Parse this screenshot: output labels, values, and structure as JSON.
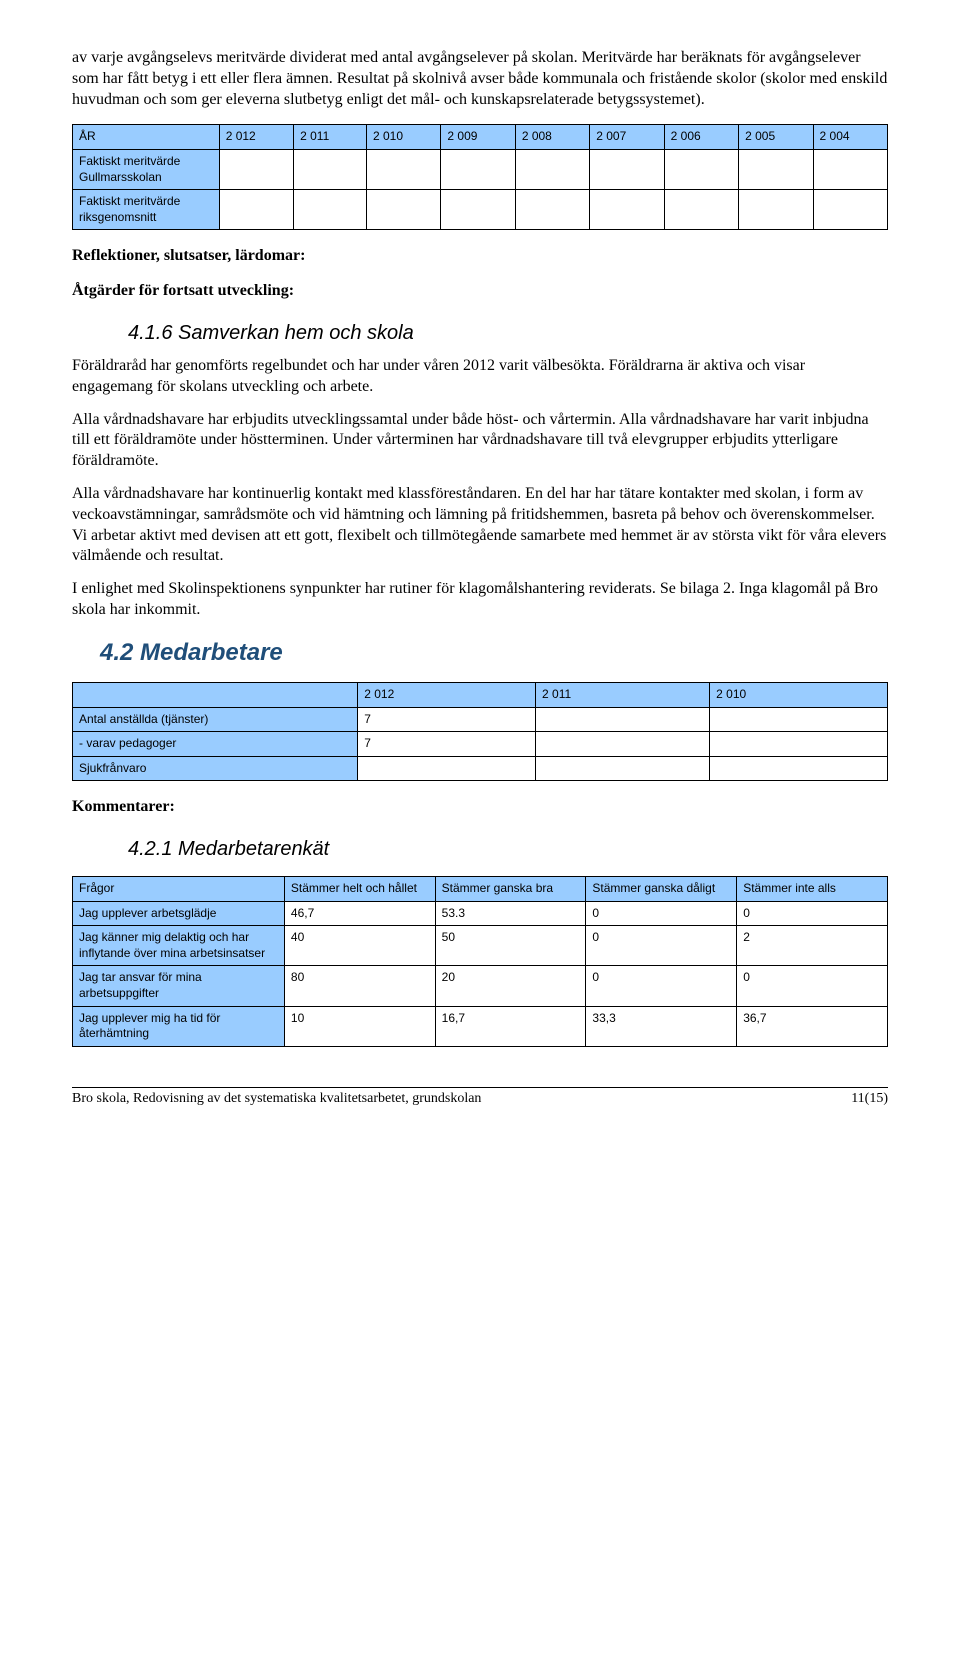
{
  "intro": {
    "p1": "av varje avgångselevs meritvärde dividerat med antal avgångselever på skolan. Meritvärde har beräknats för avgångselever som har fått betyg i ett eller flera ämnen. Resultat på skolnivå avser både kommunala och fristående skolor (skolor med enskild huvudman och som ger eleverna slutbetyg enligt det mål- och kunskapsrelaterade betygssystemet)."
  },
  "table_merit": {
    "col_label": "ÅR",
    "years": [
      "2 012",
      "2 011",
      "2 010",
      "2 009",
      "2 008",
      "2 007",
      "2 006",
      "2 005",
      "2 004"
    ],
    "rows": [
      {
        "label": "Faktiskt meritvärde Gullmarsskolan"
      },
      {
        "label": "Faktiskt meritvärde riksgenomsnitt"
      }
    ],
    "header_bg": "#99ccff",
    "border_color": "#000000"
  },
  "headings": {
    "reflektioner": "Reflektioner, slutsatser, lärdomar:",
    "atgarder": "Åtgärder för fortsatt utveckling:",
    "samverkan": "4.1.6 Samverkan hem och skola",
    "medarbetare": "4.2 Medarbetare",
    "kommentarer": "Kommentarer:",
    "medarbetarenkät": "4.2.1 Medarbetarenkät"
  },
  "samverkan_paras": {
    "p1": "Föräldraråd har genomförts regelbundet och har under våren 2012 varit välbesökta. Föräldrarna är aktiva och visar engagemang för skolans utveckling och arbete.",
    "p2": "Alla vårdnadshavare har erbjudits utvecklingssamtal under både höst- och vårtermin. Alla vårdnadshavare har varit inbjudna till ett föräldramöte under höstterminen. Under vårterminen har vårdnadshavare till två elevgrupper erbjudits ytterligare föräldramöte.",
    "p3": "Alla vårdnadshavare har kontinuerlig kontakt med klassföreståndaren. En del har har tätare kontakter med skolan, i form av veckoavstämningar, samrådsmöte och vid hämtning och lämning på fritidshemmen, basreta på behov och överenskommelser. Vi arbetar aktivt med devisen att ett gott, flexibelt och tillmötegående samarbete med hemmet är av största vikt för våra elevers välmående och resultat.",
    "p4": "I enlighet med Skolinspektionens synpunkter har rutiner för klagomålshantering reviderats. Se bilaga 2. Inga klagomål på Bro skola har inkommit."
  },
  "table_medarbetare": {
    "years": [
      "2 012",
      "2 011",
      "2 010"
    ],
    "rows": [
      {
        "label": "Antal anställda (tjänster)",
        "v": [
          "7",
          "",
          ""
        ]
      },
      {
        "label": "- varav pedagoger",
        "v": [
          "7",
          "",
          ""
        ]
      },
      {
        "label": "Sjukfrånvaro",
        "v": [
          "",
          "",
          ""
        ]
      }
    ]
  },
  "table_enkat": {
    "header": [
      "Frågor",
      "Stämmer helt och hållet",
      "Stämmer ganska bra",
      "Stämmer ganska dåligt",
      "Stämmer inte alls"
    ],
    "rows": [
      {
        "q": "Jag upplever arbetsglädje",
        "v": [
          "46,7",
          "53.3",
          "0",
          "0"
        ]
      },
      {
        "q": "Jag känner mig delaktig och har inflytande över mina arbetsinsatser",
        "v": [
          "40",
          "50",
          "0",
          "2"
        ]
      },
      {
        "q": "Jag tar ansvar för mina arbetsuppgifter",
        "v": [
          "80",
          "20",
          "0",
          "0"
        ]
      },
      {
        "q": "Jag upplever mig ha tid för återhämtning",
        "v": [
          "10",
          "16,7",
          "33,3",
          "36,7"
        ]
      }
    ]
  },
  "footer": {
    "left": "Bro skola, Redovisning av det systematiska kvalitetsarbetet, grundskolan",
    "right": "11(15)"
  },
  "colors": {
    "table_header_bg": "#99ccff",
    "heading_blue": "#1f4e79",
    "text": "#000000",
    "bg": "#ffffff"
  },
  "fonts": {
    "body": "Times New Roman",
    "table": "Arial",
    "section": "Arial Italic"
  }
}
